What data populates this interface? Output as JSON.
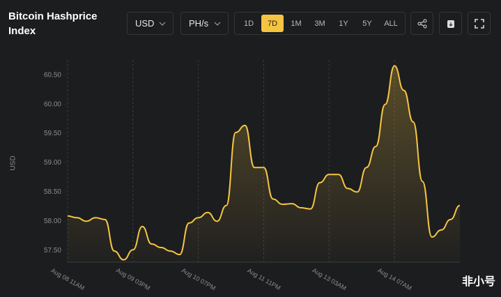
{
  "header": {
    "title": "Bitcoin Hashprice Index",
    "currency": "USD",
    "unit": "PH/s",
    "ranges": [
      "1D",
      "7D",
      "1M",
      "3M",
      "1Y",
      "5Y",
      "ALL"
    ],
    "active_range": "7D"
  },
  "watermark": "非小号",
  "chart_data": {
    "type": "line",
    "y_label": "USD",
    "categories": [
      "Aug 08 11AM",
      null,
      null,
      null,
      null,
      null,
      null,
      "Aug 09 03PM",
      null,
      null,
      null,
      null,
      null,
      null,
      "Aug 10 07PM",
      null,
      null,
      null,
      null,
      null,
      null,
      "Aug 11 11PM",
      null,
      null,
      null,
      null,
      null,
      null,
      "Aug 13 03AM",
      null,
      null,
      null,
      null,
      null,
      null,
      "Aug 14 07AM",
      null,
      null,
      null,
      null,
      null,
      null,
      null
    ],
    "series": [
      {
        "name": "Hashprice",
        "color": "#f5c542",
        "values": [
          58.09,
          58.06,
          58.0,
          58.06,
          58.03,
          57.49,
          57.34,
          57.51,
          57.91,
          57.61,
          57.55,
          57.49,
          57.43,
          57.97,
          58.06,
          58.15,
          58.0,
          58.27,
          59.52,
          59.64,
          58.92,
          58.92,
          58.38,
          58.29,
          58.3,
          58.23,
          58.21,
          58.66,
          58.8,
          58.8,
          58.56,
          58.5,
          58.92,
          59.28,
          60.0,
          60.66,
          60.24,
          59.7,
          58.68,
          57.73,
          57.85,
          58.03,
          58.27
        ]
      }
    ],
    "ylim": [
      57.3,
      60.76
    ],
    "yticks": [
      {
        "value": 57.5,
        "label": "57.50"
      },
      {
        "value": 58.0,
        "label": "58.00"
      },
      {
        "value": 58.5,
        "label": "58.50"
      },
      {
        "value": 59.0,
        "label": "59.00"
      },
      {
        "value": 59.5,
        "label": "59.50"
      },
      {
        "value": 60.0,
        "label": "60.00"
      },
      {
        "value": 60.5,
        "label": "60.50"
      }
    ],
    "grid": true
  }
}
